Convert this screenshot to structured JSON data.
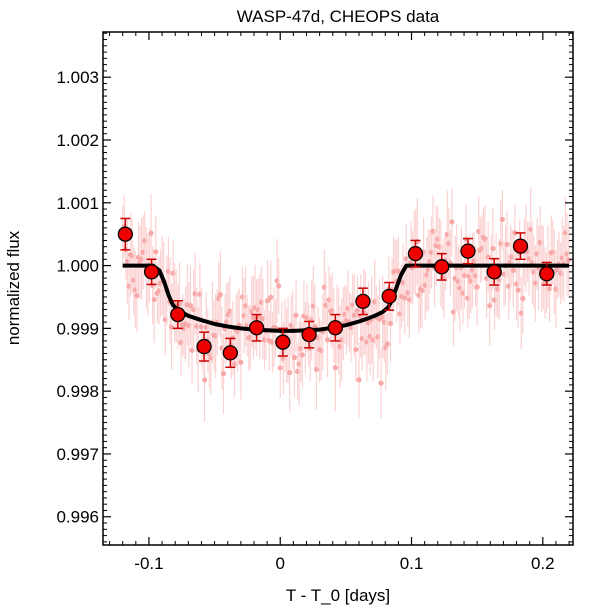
{
  "chart_data": {
    "type": "scatter",
    "title": "WASP-47d, CHEOPS data",
    "xlabel": "T - T_0 [days]",
    "ylabel": "normalized flux",
    "xlim": [
      -0.135,
      0.223
    ],
    "ylim": [
      0.99555,
      1.00372
    ],
    "x_ticks": [
      -0.1,
      0,
      0.1,
      0.2
    ],
    "x_tick_labels": [
      "-0.1",
      "0",
      "0.1",
      "0.2"
    ],
    "y_ticks": [
      0.996,
      0.997,
      0.998,
      0.999,
      1.0,
      1.001,
      1.002,
      1.003
    ],
    "y_tick_labels": [
      "0.996",
      "0.997",
      "0.998",
      "0.999",
      "1.000",
      "1.001",
      "1.002",
      "1.003"
    ],
    "grid": false,
    "colors": {
      "binned_fill": "#ee0000",
      "binned_error": "#cc0000",
      "raw_points": "#f7a8a8",
      "raw_error": "#fbd2d2",
      "model": "#000000"
    },
    "series": [
      {
        "name": "",
        "kind": "binned",
        "x": [
          -0.118,
          -0.098,
          -0.078,
          -0.058,
          -0.038,
          -0.018,
          0.002,
          0.022,
          0.042,
          0.063,
          0.083,
          0.103,
          0.123,
          0.143,
          0.163,
          0.183,
          0.203
        ],
        "y": [
          1.0005,
          0.9999,
          0.99922,
          0.99871,
          0.99861,
          0.99901,
          0.99878,
          0.9989,
          0.99901,
          0.99943,
          0.99951,
          1.00019,
          0.99998,
          1.00023,
          0.9999,
          1.00031,
          0.99987
        ],
        "yerr": [
          0.00025,
          0.0002,
          0.00022,
          0.00023,
          0.00023,
          0.00021,
          0.00022,
          0.00021,
          0.00021,
          0.00021,
          0.00022,
          0.00021,
          0.00021,
          0.0002,
          0.00021,
          0.00021,
          0.00018
        ]
      },
      {
        "name": "",
        "kind": "model",
        "x": [
          -0.12,
          -0.097,
          -0.092,
          -0.088,
          -0.085,
          -0.082,
          -0.078,
          -0.07,
          -0.06,
          -0.05,
          -0.04,
          -0.03,
          -0.02,
          -0.01,
          0.0,
          0.01,
          0.02,
          0.03,
          0.04,
          0.05,
          0.06,
          0.067,
          0.073,
          0.078,
          0.082,
          0.085,
          0.088,
          0.092,
          0.096,
          0.12,
          0.15,
          0.18,
          0.21,
          0.22
        ],
        "y": [
          1.0,
          1.0,
          0.99992,
          0.99972,
          0.99953,
          0.99938,
          0.99929,
          0.9992,
          0.99913,
          0.99907,
          0.99903,
          0.999,
          0.99898,
          0.99897,
          0.99896,
          0.99896,
          0.99897,
          0.99898,
          0.99901,
          0.99905,
          0.99911,
          0.99916,
          0.99921,
          0.99926,
          0.99933,
          0.99944,
          0.99962,
          0.99985,
          1.0,
          1.0,
          1.0,
          1.0,
          1.0,
          1.0
        ]
      }
    ]
  }
}
